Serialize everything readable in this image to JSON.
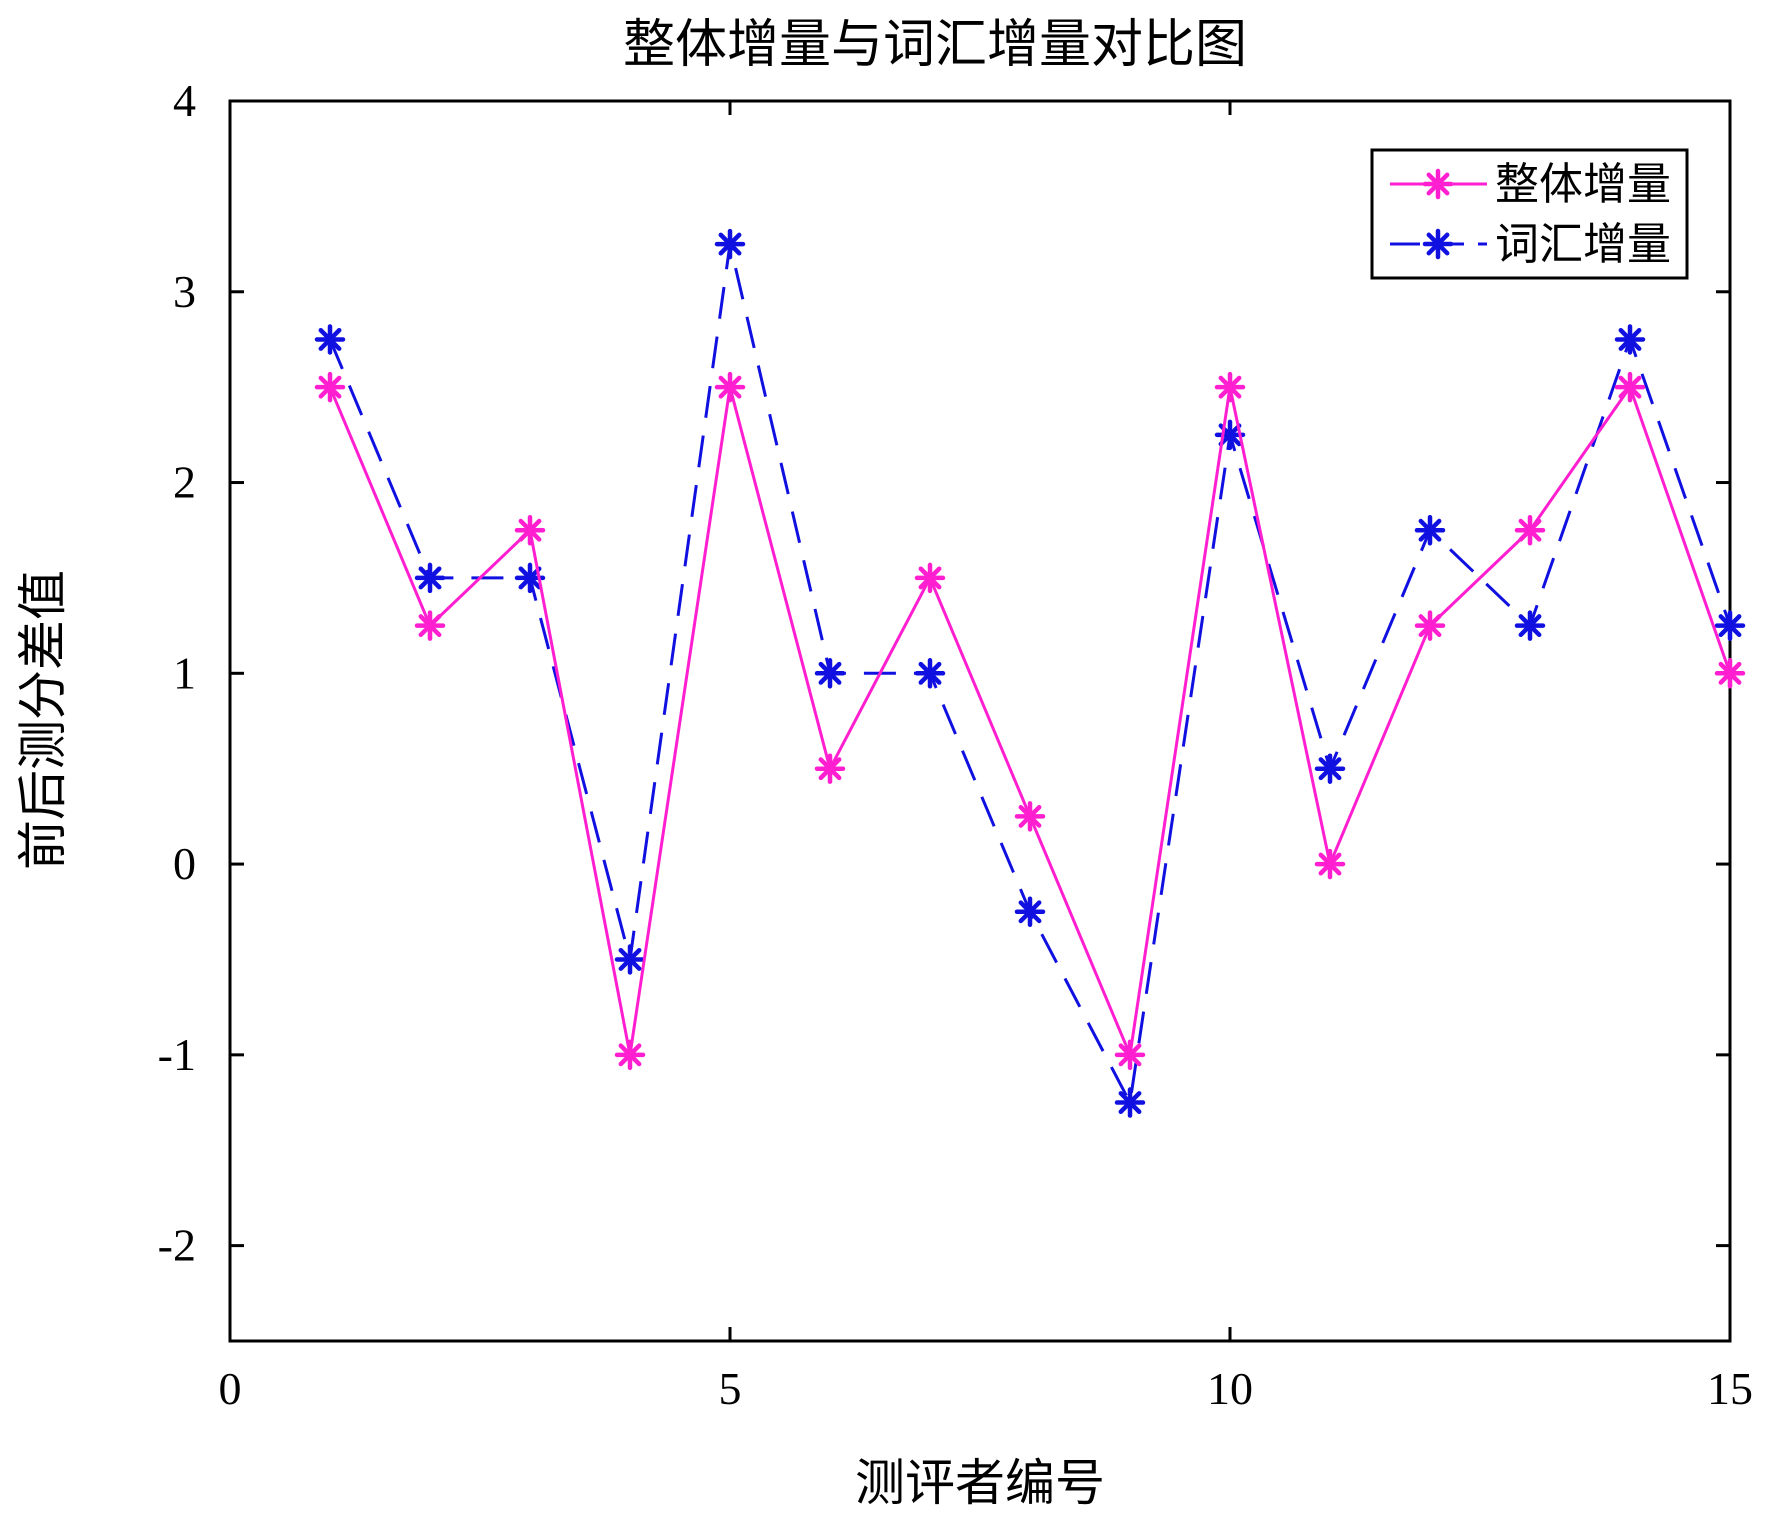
{
  "chart_data": {
    "type": "line",
    "title": "整体增量与词汇增量对比图",
    "xlabel": "测评者编号",
    "ylabel": "前后测分差值",
    "xlim": [
      0,
      15
    ],
    "ylim": [
      -2.5,
      4
    ],
    "xticks": [
      0,
      5,
      10,
      15
    ],
    "yticks": [
      -2,
      -1,
      0,
      1,
      2,
      3,
      4
    ],
    "grid": false,
    "legend_position": "top-right",
    "x": [
      1,
      2,
      3,
      4,
      5,
      6,
      7,
      8,
      9,
      10,
      11,
      12,
      13,
      14,
      15
    ],
    "series": [
      {
        "name": "整体增量",
        "color": "#ff1fd0",
        "line_style": "solid",
        "marker": "asterisk",
        "values": [
          2.5,
          1.25,
          1.75,
          -1,
          2.5,
          0.5,
          1.5,
          0.25,
          -1,
          2.5,
          0,
          1.25,
          1.75,
          2.5,
          1
        ]
      },
      {
        "name": "词汇增量",
        "color": "#1010e0",
        "line_style": "dashed",
        "marker": "asterisk",
        "values": [
          2.75,
          1.5,
          1.5,
          -0.5,
          3.25,
          1,
          1,
          -0.25,
          -1.25,
          2.25,
          0.5,
          1.75,
          1.25,
          2.75,
          1.25
        ]
      }
    ]
  }
}
